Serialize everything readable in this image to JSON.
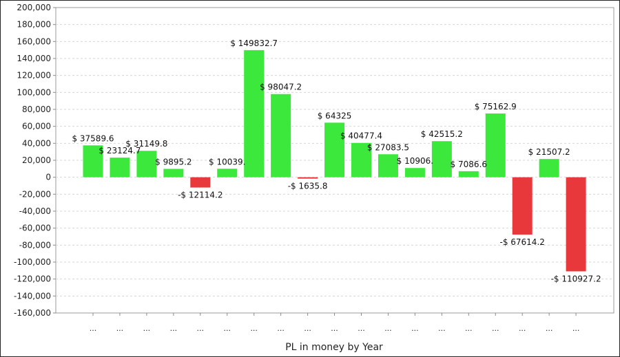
{
  "chart_data": {
    "type": "bar",
    "title": "",
    "xlabel": "PL in money by Year",
    "ylabel": "",
    "ylim": [
      -160000,
      200000
    ],
    "y_tick_step": 20000,
    "grid": true,
    "legend": "none",
    "positive_color": "#3ce83c",
    "negative_color": "#e8383c",
    "categories": [
      "...",
      "...",
      "...",
      "...",
      "...",
      "...",
      "...",
      "...",
      "...",
      "...",
      "...",
      "...",
      "...",
      "...",
      "...",
      "...",
      "...",
      "...",
      "..."
    ],
    "values": [
      37589.6,
      23124.7,
      31149.8,
      9895.2,
      -12114.2,
      10039,
      149832.7,
      98047.2,
      -1635.8,
      64325,
      40477.4,
      27083.5,
      10906,
      42515.2,
      7086.6,
      75162.9,
      -67614.2,
      21507.2,
      -110927.2
    ],
    "data_labels": [
      "$ 37589.6",
      "$ 23124.7",
      "$ 31149.8",
      "$ 9895.2",
      "-$ 12114.2",
      "$ 10039.",
      "$ 149832.7",
      "$ 98047.2",
      "-$ 1635.8",
      "$ 64325",
      "$ 40477.4",
      "$ 27083.5",
      "$ 10906.",
      "$ 42515.2",
      "$ 7086.6",
      "$ 75162.9",
      "-$ 67614.2",
      "$ 21507.2",
      "-$ 110927.2"
    ]
  }
}
